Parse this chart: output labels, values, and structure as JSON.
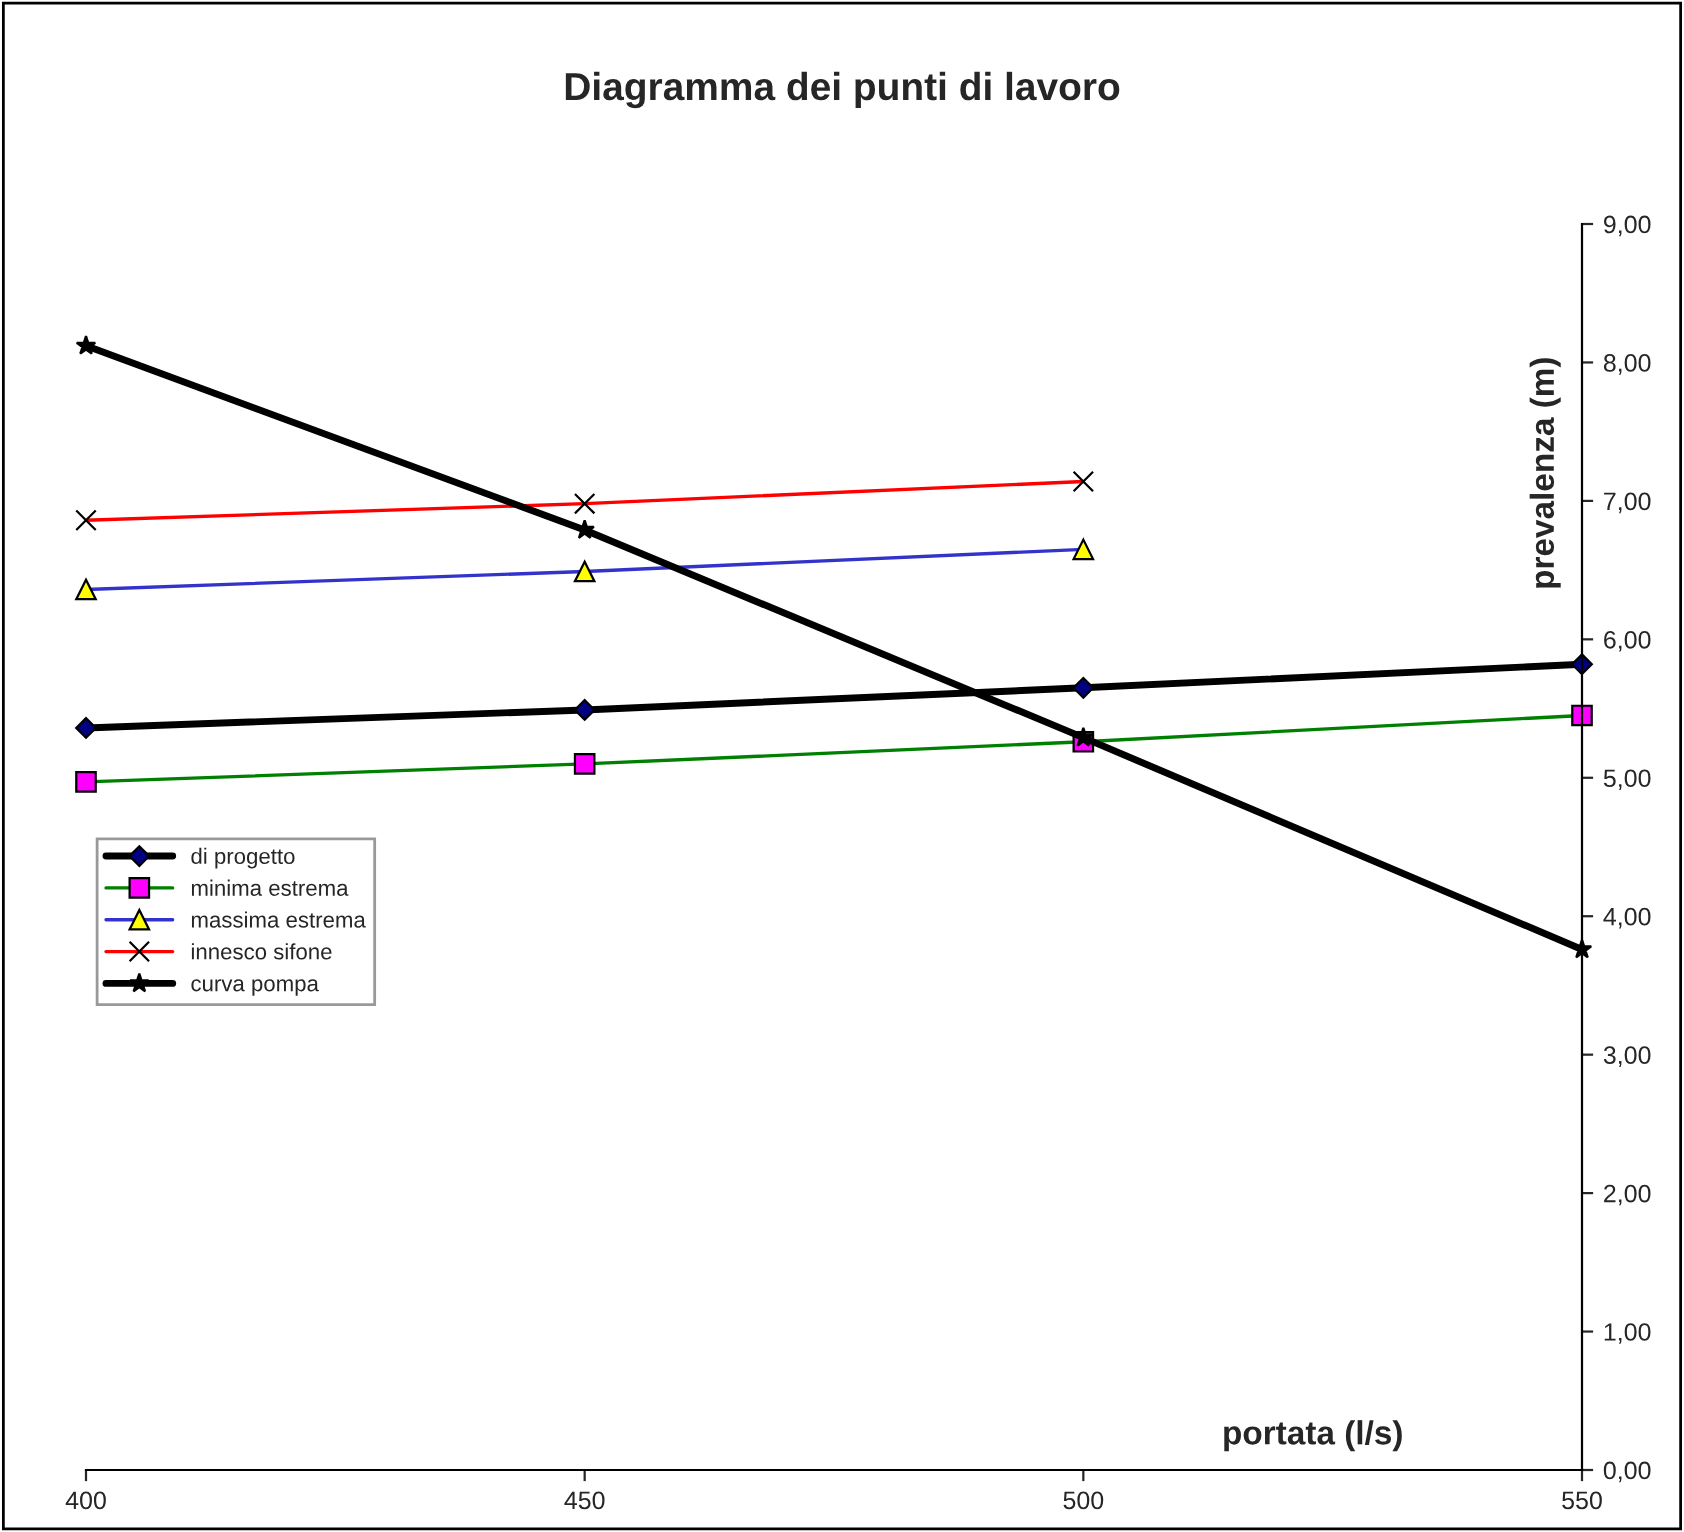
{
  "chart_data": {
    "type": "line",
    "title": "Diagramma dei punti di lavoro",
    "xlabel": "portata (l/s)",
    "ylabel": "prevalenza (m)",
    "x": [
      400,
      450,
      500,
      550
    ],
    "series": [
      {
        "name": "di progetto",
        "color": "#000000",
        "marker": "diamond",
        "values": [
          5.36,
          5.49,
          5.65,
          5.82
        ]
      },
      {
        "name": "minima estrema",
        "color": "#008000",
        "marker": "square",
        "values": [
          4.97,
          5.1,
          5.26,
          5.45
        ]
      },
      {
        "name": "massima estrema",
        "color": "#3333cc",
        "marker": "triangle",
        "values": [
          6.36,
          6.49,
          6.65,
          null
        ]
      },
      {
        "name": "innesco sifone",
        "color": "#ff0000",
        "marker": "cross",
        "values": [
          6.86,
          6.98,
          7.14,
          null
        ]
      },
      {
        "name": "curva pompa",
        "color": "#000000",
        "marker": "star",
        "values": [
          8.12,
          6.79,
          5.29,
          3.76
        ]
      }
    ],
    "xlim": [
      400,
      550
    ],
    "xticks": [
      400,
      450,
      500,
      550
    ],
    "ylim": [
      0,
      9
    ],
    "yticks": [
      {
        "value": 0,
        "label": "0,00"
      },
      {
        "value": 1,
        "label": "1,00"
      },
      {
        "value": 2,
        "label": "2,00"
      },
      {
        "value": 3,
        "label": "3,00"
      },
      {
        "value": 4,
        "label": "4,00"
      },
      {
        "value": 5,
        "label": "5,00"
      },
      {
        "value": 6,
        "label": "6,00"
      },
      {
        "value": 7,
        "label": "7,00"
      },
      {
        "value": 8,
        "label": "8,00"
      },
      {
        "value": 9,
        "label": "9,00"
      }
    ],
    "grid": false,
    "legend": "left"
  }
}
